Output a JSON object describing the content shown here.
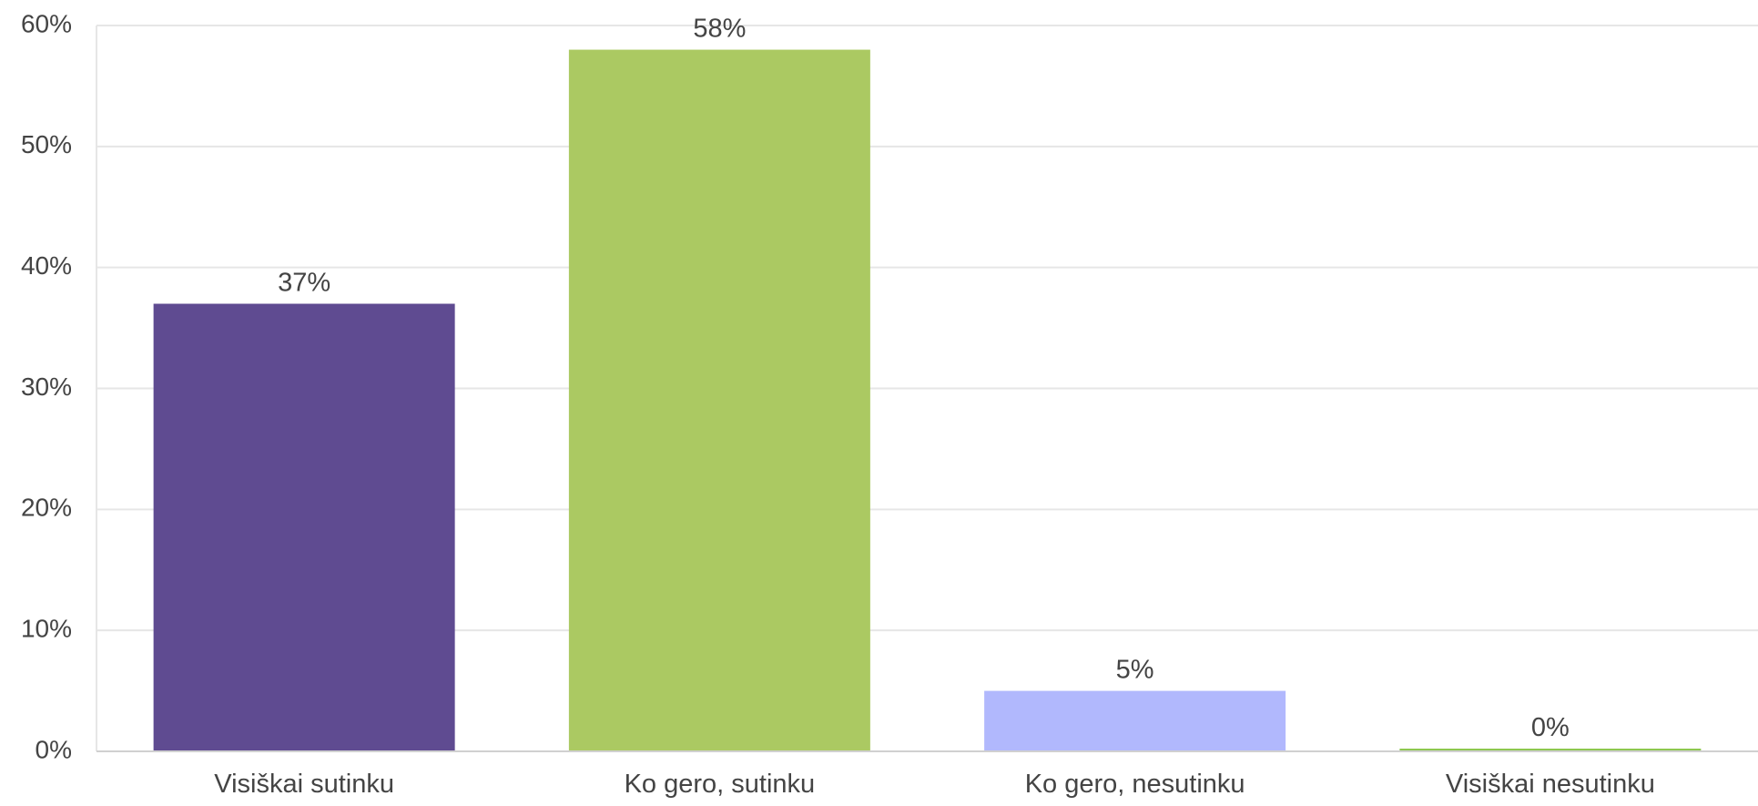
{
  "chart_data": {
    "type": "bar",
    "categories": [
      "Visiškai sutinku",
      "Ko gero, sutinku",
      "Ko gero, nesutinku",
      "Visiškai nesutinku"
    ],
    "values": [
      37,
      58,
      5,
      0
    ],
    "value_labels": [
      "37%",
      "58%",
      "5%",
      "0%"
    ],
    "colors": [
      "#5f4b91",
      "#abc962",
      "#b1b8fd",
      "#8dc74f"
    ],
    "ylim": [
      0,
      60
    ],
    "yticks": [
      0,
      10,
      20,
      30,
      40,
      50,
      60
    ],
    "ytick_labels": [
      "0%",
      "10%",
      "20%",
      "30%",
      "40%",
      "50%",
      "60%"
    ],
    "grid": true,
    "title": "",
    "xlabel": "",
    "ylabel": ""
  }
}
